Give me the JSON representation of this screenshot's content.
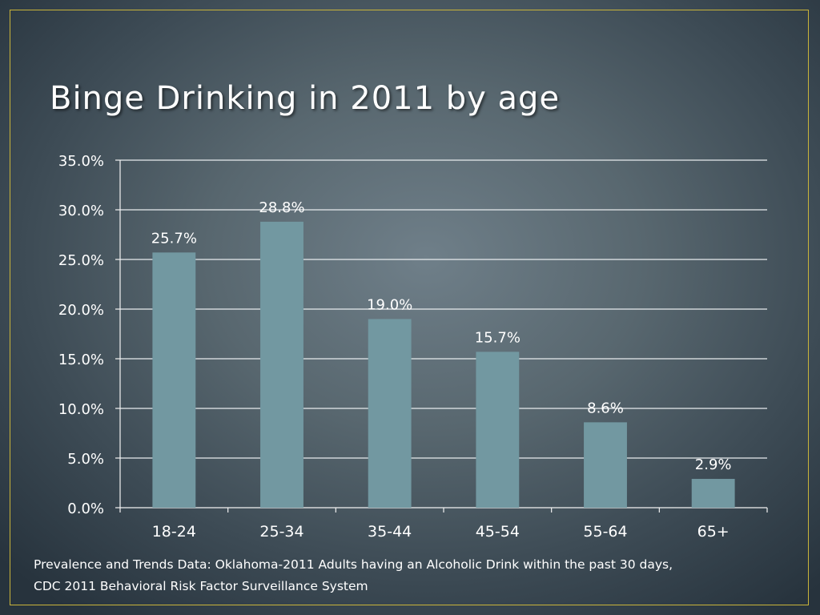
{
  "slide": {
    "title": "Binge Drinking in 2011 by age",
    "caption_line1": "Prevalence and Trends Data: Oklahoma-2011 Adults having an Alcoholic Drink within the past 30 days,",
    "caption_line2": "CDC 2011 Behavioral Risk Factor Surveillance System"
  },
  "chart_data": {
    "type": "bar",
    "title": "Binge Drinking in 2011 by age",
    "xlabel": "",
    "ylabel": "",
    "categories": [
      "18-24",
      "25-34",
      "35-44",
      "45-54",
      "55-64",
      "65+"
    ],
    "values": [
      25.7,
      28.8,
      19.0,
      15.7,
      8.6,
      2.9
    ],
    "value_labels": [
      "25.7%",
      "28.8%",
      "19.0%",
      "15.7%",
      "8.6%",
      "2.9%"
    ],
    "ylim": [
      0,
      35
    ],
    "yticks": [
      0,
      5,
      10,
      15,
      20,
      25,
      30,
      35
    ],
    "ytick_labels": [
      "0.0%",
      "5.0%",
      "10.0%",
      "15.0%",
      "20.0%",
      "25.0%",
      "30.0%",
      "35.0%"
    ],
    "grid": true,
    "legend": "none",
    "colors": {
      "bar": "#7298a1",
      "grid": "#e8ecee",
      "axis": "#f2f2f2",
      "text": "#ffffff",
      "frame": "#c9b43a"
    }
  }
}
